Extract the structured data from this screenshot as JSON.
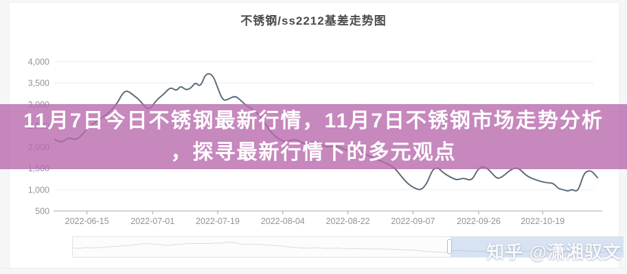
{
  "page": {
    "watermark": "知乎 @潇湘驭文"
  },
  "overlay": {
    "lines": [
      "11月7日今日不锈钢最新行情，11月7日不锈钢市场走势分析",
      "，探寻最新行情下的多元观点"
    ],
    "background_color": "rgba(184,106,172,0.8)",
    "text_color": "#ffffff"
  },
  "colors": {
    "line": "#5c6b77",
    "grid": "#ebedf0",
    "axis": "#a3a7ab",
    "tick_label": "#8e9399",
    "title": "#4b4b4b",
    "sparkline": "#d9dbdd",
    "slider_selection": "#d7e2f3"
  },
  "chart_data": {
    "type": "line",
    "title": "不锈钢/ss2212基差走势图",
    "xlabel": "",
    "ylabel": "",
    "ylim": [
      500,
      4000
    ],
    "grid": true,
    "legend": "none",
    "y_ticks": [
      {
        "label": "4,000",
        "value": 4000
      },
      {
        "label": "3,500",
        "value": 3500
      },
      {
        "label": "3,000",
        "value": 3000
      },
      {
        "label": "2,500",
        "value": 2500
      },
      {
        "label": "2,000",
        "value": 2000
      },
      {
        "label": "1,500",
        "value": 1500
      },
      {
        "label": "1,000",
        "value": 1000
      },
      {
        "label": "500",
        "value": 500
      }
    ],
    "x_ticks": [
      {
        "label": "2022-06-15",
        "f": 0.059
      },
      {
        "label": "2022-07-01",
        "f": 0.18
      },
      {
        "label": "2022-07-19",
        "f": 0.3
      },
      {
        "label": "2022-08-04",
        "f": 0.42
      },
      {
        "label": "2022-08-22",
        "f": 0.54
      },
      {
        "label": "2022-09-07",
        "f": 0.66
      },
      {
        "label": "2022-09-26",
        "f": 0.781
      },
      {
        "label": "2022-10-19",
        "f": 0.899
      }
    ],
    "series": [
      {
        "name": "ss2212基差",
        "x_is_fraction_of_axis": true,
        "points": [
          [
            0.0,
            2180
          ],
          [
            0.01,
            2080
          ],
          [
            0.025,
            2230
          ],
          [
            0.041,
            2150
          ],
          [
            0.057,
            2400
          ],
          [
            0.076,
            2600
          ],
          [
            0.095,
            2750
          ],
          [
            0.114,
            3000
          ],
          [
            0.124,
            3250
          ],
          [
            0.133,
            3330
          ],
          [
            0.146,
            3200
          ],
          [
            0.156,
            3100
          ],
          [
            0.165,
            2950
          ],
          [
            0.175,
            2870
          ],
          [
            0.187,
            3100
          ],
          [
            0.2,
            3230
          ],
          [
            0.213,
            3410
          ],
          [
            0.224,
            3310
          ],
          [
            0.232,
            3440
          ],
          [
            0.241,
            3330
          ],
          [
            0.251,
            3380
          ],
          [
            0.259,
            3520
          ],
          [
            0.268,
            3400
          ],
          [
            0.278,
            3730
          ],
          [
            0.291,
            3700
          ],
          [
            0.301,
            3350
          ],
          [
            0.31,
            3080
          ],
          [
            0.32,
            3120
          ],
          [
            0.332,
            3200
          ],
          [
            0.342,
            3100
          ],
          [
            0.354,
            2950
          ],
          [
            0.367,
            2870
          ],
          [
            0.38,
            2700
          ],
          [
            0.392,
            2450
          ],
          [
            0.405,
            2250
          ],
          [
            0.424,
            2100
          ],
          [
            0.443,
            2200
          ],
          [
            0.462,
            2050
          ],
          [
            0.481,
            2150
          ],
          [
            0.5,
            1980
          ],
          [
            0.519,
            2050
          ],
          [
            0.538,
            1900
          ],
          [
            0.557,
            1950
          ],
          [
            0.576,
            1800
          ],
          [
            0.595,
            1700
          ],
          [
            0.614,
            1600
          ],
          [
            0.627,
            1500
          ],
          [
            0.639,
            1300
          ],
          [
            0.652,
            1120
          ],
          [
            0.665,
            1020
          ],
          [
            0.675,
            990
          ],
          [
            0.686,
            1150
          ],
          [
            0.696,
            1480
          ],
          [
            0.706,
            1520
          ],
          [
            0.715,
            1400
          ],
          [
            0.728,
            1300
          ],
          [
            0.741,
            1220
          ],
          [
            0.753,
            1280
          ],
          [
            0.768,
            1200
          ],
          [
            0.778,
            1450
          ],
          [
            0.787,
            1550
          ],
          [
            0.797,
            1500
          ],
          [
            0.808,
            1350
          ],
          [
            0.816,
            1250
          ],
          [
            0.827,
            1320
          ],
          [
            0.835,
            1420
          ],
          [
            0.848,
            1520
          ],
          [
            0.857,
            1480
          ],
          [
            0.867,
            1350
          ],
          [
            0.877,
            1270
          ],
          [
            0.889,
            1220
          ],
          [
            0.899,
            1180
          ],
          [
            0.909,
            1160
          ],
          [
            0.919,
            1150
          ],
          [
            0.928,
            1020
          ],
          [
            0.937,
            1000
          ],
          [
            0.946,
            960
          ],
          [
            0.953,
            1010
          ],
          [
            0.962,
            950
          ],
          [
            0.968,
            1100
          ],
          [
            0.975,
            1380
          ],
          [
            0.984,
            1450
          ],
          [
            0.991,
            1420
          ],
          [
            1.0,
            1280
          ]
        ]
      }
    ]
  }
}
